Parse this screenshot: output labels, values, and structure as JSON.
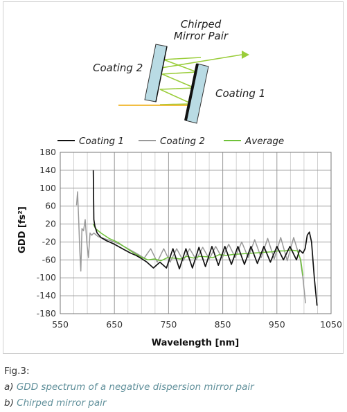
{
  "diagram": {
    "title_line1": "Chirped",
    "title_line2": "Mirror Pair",
    "label_coating2": "Coating 2",
    "label_coating1": "Coating 1",
    "beam_color": "#9acd3a",
    "input_color": "#f0b428",
    "mirror_fill": "#b9dbe4"
  },
  "chart_data": {
    "type": "line",
    "xlabel": "Wavelength [nm]",
    "ylabel": "GDD [fs²]",
    "xlim": [
      550,
      1050
    ],
    "ylim": [
      -180,
      180
    ],
    "xticks": [
      550,
      650,
      750,
      850,
      950,
      1050
    ],
    "yticks": [
      180,
      140,
      100,
      60,
      20,
      -20,
      -60,
      -100,
      -140,
      -180
    ],
    "grid": true,
    "legend_position": "top",
    "series": [
      {
        "name": "Coating 1",
        "color": "#111111",
        "x": [
          611,
          612,
          614,
          618,
          625,
          635,
          650,
          665,
          680,
          690,
          700,
          710,
          722,
          734,
          746,
          758,
          770,
          782,
          794,
          806,
          818,
          830,
          842,
          854,
          866,
          878,
          890,
          902,
          914,
          926,
          938,
          950,
          962,
          974,
          986,
          992,
          998,
          1002,
          1006,
          1010,
          1014,
          1019,
          1024
        ],
        "y": [
          140,
          30,
          15,
          0,
          -10,
          -17,
          -25,
          -35,
          -45,
          -50,
          -57,
          -65,
          -78,
          -65,
          -78,
          -35,
          -80,
          -35,
          -78,
          -32,
          -75,
          -30,
          -72,
          -30,
          -70,
          -30,
          -70,
          -30,
          -68,
          -30,
          -65,
          -30,
          -60,
          -30,
          -60,
          -38,
          -45,
          -35,
          -5,
          2,
          -20,
          -100,
          -162
        ]
      },
      {
        "name": "Coating 2",
        "color": "#999999",
        "x": [
          580,
          582,
          584,
          586,
          588,
          590,
          593,
          596,
          599,
          602,
          605,
          608,
          612,
          620,
          630,
          645,
          660,
          675,
          690,
          705,
          717,
          729,
          741,
          753,
          765,
          777,
          789,
          801,
          813,
          825,
          837,
          849,
          861,
          873,
          885,
          897,
          909,
          921,
          933,
          945,
          957,
          969,
          981,
          993,
          998,
          1003
        ],
        "y": [
          62,
          92,
          30,
          -40,
          -85,
          10,
          5,
          30,
          -20,
          -55,
          0,
          -5,
          0,
          -8,
          -12,
          -18,
          -25,
          -35,
          -45,
          -56,
          -35,
          -65,
          -35,
          -65,
          -35,
          -62,
          -35,
          -60,
          -32,
          -58,
          -30,
          -56,
          -25,
          -55,
          -20,
          -55,
          -15,
          -55,
          -12,
          -58,
          -10,
          -62,
          -10,
          -58,
          -100,
          -157
        ]
      },
      {
        "name": "Average",
        "color": "#6fc23a",
        "x": [
          611,
          615,
          625,
          640,
          655,
          670,
          685,
          700,
          712,
          724,
          736,
          748,
          760,
          772,
          784,
          796,
          808,
          820,
          832,
          844,
          856,
          868,
          880,
          892,
          904,
          916,
          928,
          940,
          952,
          964,
          976,
          988,
          994,
          998
        ],
        "y": [
          20,
          10,
          0,
          -12,
          -20,
          -32,
          -44,
          -54,
          -60,
          -58,
          -62,
          -55,
          -56,
          -58,
          -52,
          -56,
          -52,
          -53,
          -55,
          -48,
          -50,
          -48,
          -47,
          -46,
          -45,
          -44,
          -43,
          -42,
          -40,
          -40,
          -38,
          -40,
          -60,
          -95
        ]
      }
    ]
  },
  "caption": {
    "fig": "Fig.3:",
    "a_prefix": "a)",
    "a_text": "GDD spectrum of a negative dispersion mirror pair",
    "b_prefix": "b)",
    "b_text": "Chirped mirror pair"
  }
}
